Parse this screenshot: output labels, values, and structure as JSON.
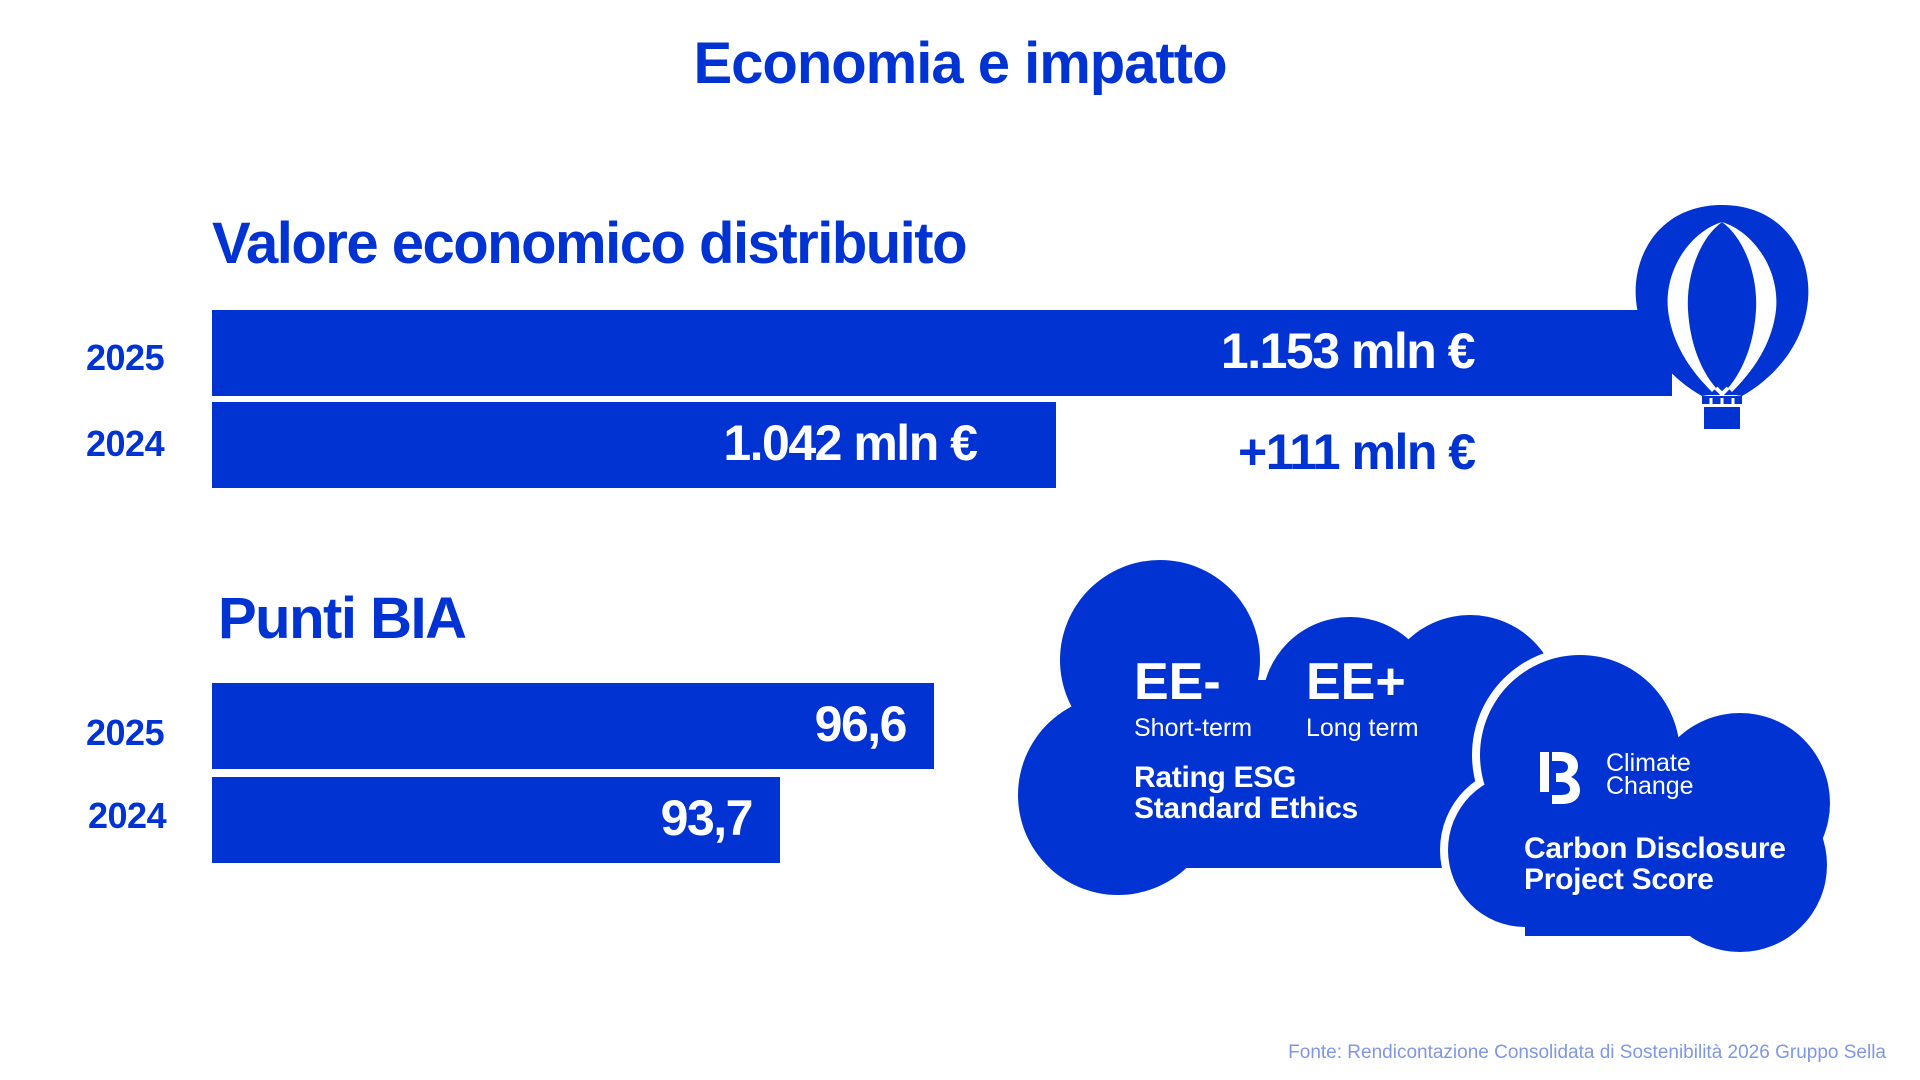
{
  "title": "Economia e impatto",
  "chart_data": [
    {
      "type": "bar",
      "orientation": "horizontal",
      "title": "Valore economico distribuito",
      "categories": [
        "2025",
        "2024"
      ],
      "values": [
        1153,
        1042
      ],
      "value_labels": [
        "1.153 mln €",
        "1.042 mln €"
      ],
      "unit": "mln €",
      "annotation": "+111 mln €"
    },
    {
      "type": "bar",
      "orientation": "horizontal",
      "title": "Punti BIA",
      "categories": [
        "2025",
        "2024"
      ],
      "values": [
        96.6,
        93.7
      ],
      "value_labels": [
        "96,6",
        "93,7"
      ]
    }
  ],
  "clouds": {
    "esg": {
      "rating_short": "EE-",
      "short_label": "Short-term",
      "rating_long": "EE+",
      "long_label": "Long term",
      "name_line1": "Rating ESG",
      "name_line2": "Standard Ethics"
    },
    "cdp": {
      "logo_letter": "B",
      "score_line1": "Climate",
      "score_line2": "Change",
      "name_line1": "Carbon Disclosure",
      "name_line2": "Project Score"
    }
  },
  "icons": [
    "hot-air-balloon-icon",
    "cloud-shape",
    "cdp-logo-icon"
  ],
  "colors": {
    "brand": "#0033d1",
    "source": "#7f97e6",
    "background": "#ffffff"
  },
  "source": "Fonte: Rendicontazione Consolidata di Sostenibilità 2026 Gruppo Sella"
}
